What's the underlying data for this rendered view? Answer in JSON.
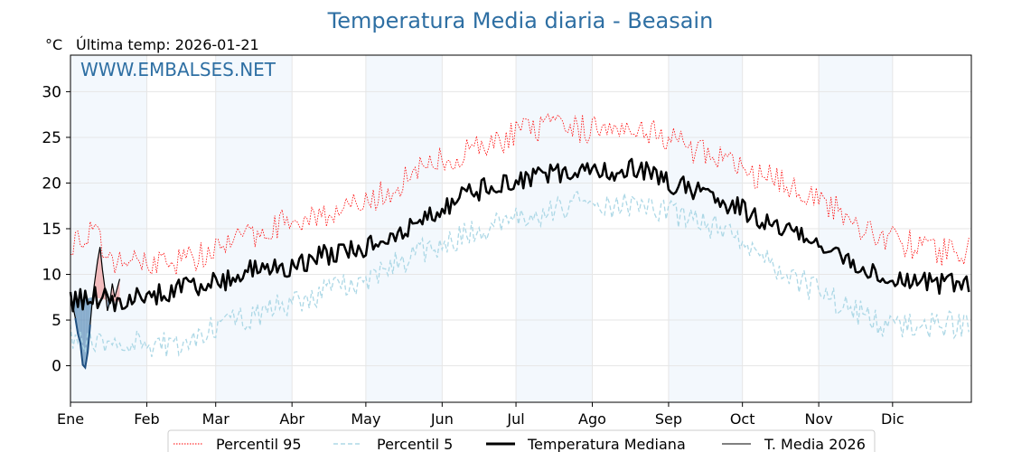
{
  "chart_data": {
    "type": "line",
    "title": "Temperatura Media diaria - Beasain",
    "unit_label": "°C",
    "last_temp_label": "Última temp: 2026-01-21",
    "watermark": "WWW.EMBALSES.NET",
    "ylim": [
      -4,
      34
    ],
    "yticks": [
      0,
      5,
      10,
      15,
      20,
      25,
      30
    ],
    "month_labels": [
      "Ene",
      "Feb",
      "Mar",
      "Abr",
      "May",
      "Jun",
      "Jul",
      "Ago",
      "Sep",
      "Oct",
      "Nov",
      "Dic"
    ],
    "month_start_days": [
      1,
      32,
      60,
      91,
      121,
      152,
      182,
      213,
      244,
      274,
      305,
      335
    ],
    "days_in_year": 366,
    "grid": true,
    "shaded_months": [
      "Ene",
      "Mar",
      "May",
      "Jul",
      "Sep",
      "Nov"
    ],
    "legend_position": "bottom",
    "series": [
      {
        "name": "Percentil 95",
        "color": "#ff0000",
        "style": "dotted",
        "key_points": [
          [
            1,
            13.5
          ],
          [
            10,
            14.5
          ],
          [
            20,
            11
          ],
          [
            32,
            11.5
          ],
          [
            45,
            11.5
          ],
          [
            60,
            12.5
          ],
          [
            75,
            14.5
          ],
          [
            91,
            16
          ],
          [
            110,
            17
          ],
          [
            121,
            17.5
          ],
          [
            140,
            21
          ],
          [
            152,
            22.5
          ],
          [
            170,
            24
          ],
          [
            182,
            25.5
          ],
          [
            195,
            26
          ],
          [
            213,
            26
          ],
          [
            225,
            26.5
          ],
          [
            235,
            26
          ],
          [
            244,
            25
          ],
          [
            260,
            23
          ],
          [
            274,
            21.5
          ],
          [
            290,
            20
          ],
          [
            305,
            18.5
          ],
          [
            320,
            15.5
          ],
          [
            335,
            14
          ],
          [
            350,
            12.5
          ],
          [
            366,
            12.5
          ]
        ]
      },
      {
        "name": "Percentil 5",
        "color": "#add8e6",
        "style": "dashed",
        "key_points": [
          [
            1,
            3.5
          ],
          [
            10,
            2
          ],
          [
            20,
            3
          ],
          [
            32,
            2.5
          ],
          [
            45,
            2
          ],
          [
            60,
            4.5
          ],
          [
            75,
            5.5
          ],
          [
            91,
            7
          ],
          [
            110,
            8.5
          ],
          [
            121,
            9.5
          ],
          [
            140,
            12
          ],
          [
            152,
            13.5
          ],
          [
            170,
            15
          ],
          [
            182,
            16
          ],
          [
            195,
            17
          ],
          [
            213,
            18
          ],
          [
            225,
            17.5
          ],
          [
            235,
            17.5
          ],
          [
            244,
            17
          ],
          [
            260,
            15.5
          ],
          [
            274,
            14
          ],
          [
            290,
            10.5
          ],
          [
            305,
            8
          ],
          [
            320,
            6
          ],
          [
            335,
            4
          ],
          [
            350,
            4.5
          ],
          [
            366,
            4.5
          ]
        ]
      },
      {
        "name": "Temperatura Mediana",
        "color": "#000000",
        "style": "solid-thick",
        "key_points": [
          [
            1,
            7
          ],
          [
            10,
            7.5
          ],
          [
            20,
            7
          ],
          [
            32,
            7.5
          ],
          [
            45,
            8.5
          ],
          [
            60,
            9
          ],
          [
            75,
            10.5
          ],
          [
            91,
            11
          ],
          [
            110,
            12.5
          ],
          [
            121,
            13
          ],
          [
            140,
            15
          ],
          [
            152,
            17.5
          ],
          [
            170,
            19.5
          ],
          [
            182,
            20
          ],
          [
            195,
            21
          ],
          [
            213,
            21
          ],
          [
            225,
            21.5
          ],
          [
            235,
            21.5
          ],
          [
            244,
            20
          ],
          [
            260,
            19
          ],
          [
            274,
            17
          ],
          [
            290,
            15
          ],
          [
            305,
            13.5
          ],
          [
            320,
            11
          ],
          [
            335,
            9
          ],
          [
            350,
            9
          ],
          [
            366,
            9
          ]
        ]
      },
      {
        "name": "T. Media 2026",
        "color": "#000000",
        "style": "solid-thin",
        "points": [
          [
            1,
            6.8
          ],
          [
            2,
            6.5
          ],
          [
            3,
            5.2
          ],
          [
            4,
            3.5
          ],
          [
            5,
            2.5
          ],
          [
            6,
            0.1
          ],
          [
            7,
            -0.2
          ],
          [
            8,
            1.5
          ],
          [
            9,
            4.5
          ],
          [
            10,
            7.5
          ],
          [
            11,
            9.5
          ],
          [
            12,
            11.5
          ],
          [
            13,
            13
          ],
          [
            14,
            10.5
          ],
          [
            15,
            8.5
          ],
          [
            16,
            6
          ],
          [
            17,
            7
          ],
          [
            18,
            9
          ],
          [
            19,
            7.5
          ],
          [
            20,
            8.5
          ],
          [
            21,
            9.5
          ]
        ]
      }
    ]
  }
}
